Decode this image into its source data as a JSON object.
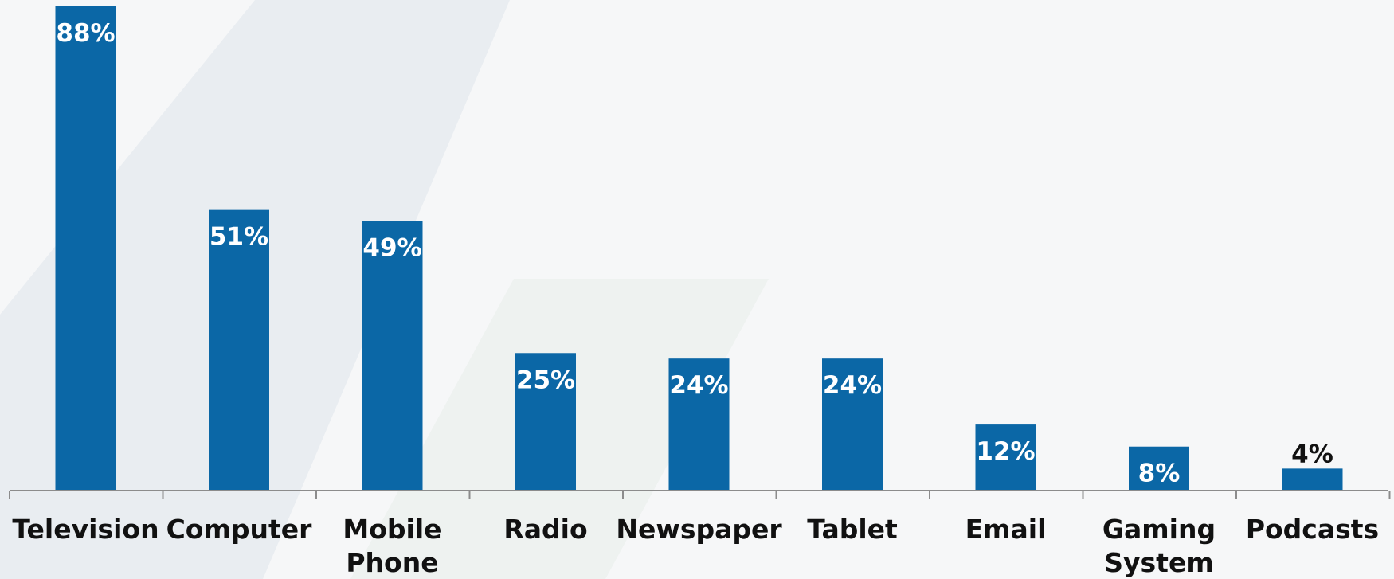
{
  "colors": {
    "bar": "#0b67a6",
    "label_inside": "#ffffff",
    "label_outside": "#111111",
    "axis": "#8c8c8c",
    "background": "#f6f7f8",
    "decor_light": "#e9edf1",
    "decor_lighter": "#eef2f0"
  },
  "chart_data": {
    "type": "bar",
    "categories": [
      "Television",
      "Computer",
      "Mobile Phone",
      "Radio",
      "Newspaper",
      "Tablet",
      "Email",
      "Gaming System",
      "Podcasts"
    ],
    "category_lines": [
      [
        "Television"
      ],
      [
        "Computer"
      ],
      [
        "Mobile",
        "Phone"
      ],
      [
        "Radio"
      ],
      [
        "Newspaper"
      ],
      [
        "Tablet"
      ],
      [
        "Email"
      ],
      [
        "Gaming",
        "System"
      ],
      [
        "Podcasts"
      ]
    ],
    "values": [
      88,
      51,
      49,
      25,
      24,
      24,
      12,
      8,
      4
    ],
    "value_labels": [
      "88%",
      "51%",
      "49%",
      "25%",
      "24%",
      "24%",
      "12%",
      "8%",
      "4%"
    ],
    "title": "",
    "xlabel": "",
    "ylabel": "",
    "ylim": [
      0,
      88
    ],
    "grid": false,
    "legend": "none"
  }
}
